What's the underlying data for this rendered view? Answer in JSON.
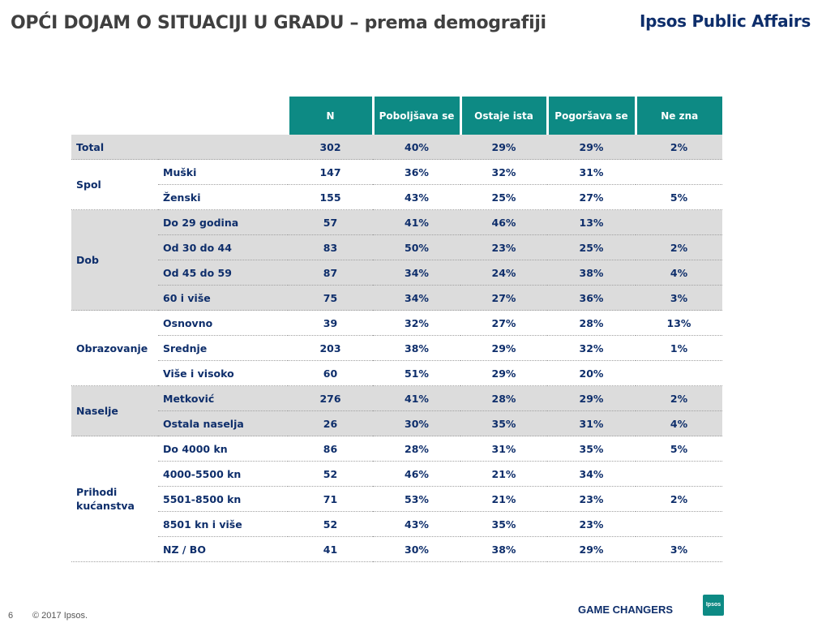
{
  "header": {
    "title": "OPĆI DOJAM O SITUACIJI U GRADU – prema demografiji",
    "brand": "Ipsos Public Affairs"
  },
  "table": {
    "columns": [
      "N",
      "Poboljšava se",
      "Ostaje ista",
      "Pogoršava se",
      "Ne zna"
    ],
    "groups": [
      {
        "name": "Total",
        "shaded": true,
        "rows": [
          {
            "label": "",
            "n": "302",
            "v": [
              "40%",
              "29%",
              "29%",
              "2%"
            ]
          }
        ]
      },
      {
        "name": "Spol",
        "shaded": false,
        "rows": [
          {
            "label": "Muški",
            "n": "147",
            "v": [
              "36%",
              "32%",
              "31%",
              ""
            ]
          },
          {
            "label": "Ženski",
            "n": "155",
            "v": [
              "43%",
              "25%",
              "27%",
              "5%"
            ]
          }
        ]
      },
      {
        "name": "Dob",
        "shaded": true,
        "rows": [
          {
            "label": "Do 29 godina",
            "n": "57",
            "v": [
              "41%",
              "46%",
              "13%",
              ""
            ]
          },
          {
            "label": "Od 30 do 44",
            "n": "83",
            "v": [
              "50%",
              "23%",
              "25%",
              "2%"
            ]
          },
          {
            "label": "Od 45 do 59",
            "n": "87",
            "v": [
              "34%",
              "24%",
              "38%",
              "4%"
            ]
          },
          {
            "label": "60 i više",
            "n": "75",
            "v": [
              "34%",
              "27%",
              "36%",
              "3%"
            ]
          }
        ]
      },
      {
        "name": "Obrazovanje",
        "shaded": false,
        "rows": [
          {
            "label": "Osnovno",
            "n": "39",
            "v": [
              "32%",
              "27%",
              "28%",
              "13%"
            ]
          },
          {
            "label": "Srednje",
            "n": "203",
            "v": [
              "38%",
              "29%",
              "32%",
              "1%"
            ]
          },
          {
            "label": "Više i visoko",
            "n": "60",
            "v": [
              "51%",
              "29%",
              "20%",
              ""
            ]
          }
        ]
      },
      {
        "name": "Naselje",
        "shaded": true,
        "rows": [
          {
            "label": "Metković",
            "n": "276",
            "v": [
              "41%",
              "28%",
              "29%",
              "2%"
            ]
          },
          {
            "label": "Ostala naselja",
            "n": "26",
            "v": [
              "30%",
              "35%",
              "31%",
              "4%"
            ]
          }
        ]
      },
      {
        "name": "Prihodi kućanstva",
        "shaded": false,
        "rows": [
          {
            "label": "Do 4000 kn",
            "n": "86",
            "v": [
              "28%",
              "31%",
              "35%",
              "5%"
            ]
          },
          {
            "label": "4000-5500 kn",
            "n": "52",
            "v": [
              "46%",
              "21%",
              "34%",
              ""
            ]
          },
          {
            "label": "5501-8500 kn",
            "n": "71",
            "v": [
              "53%",
              "21%",
              "23%",
              "2%"
            ]
          },
          {
            "label": "8501 kn i više",
            "n": "52",
            "v": [
              "43%",
              "35%",
              "23%",
              ""
            ]
          },
          {
            "label": "NZ / BO",
            "n": "41",
            "v": [
              "30%",
              "38%",
              "29%",
              "3%"
            ]
          }
        ]
      }
    ]
  },
  "footer": {
    "page": "6",
    "copyright": "© 2017 Ipsos.",
    "tagline": "GAME CHANGERS",
    "logo_text": "Ipsos"
  }
}
